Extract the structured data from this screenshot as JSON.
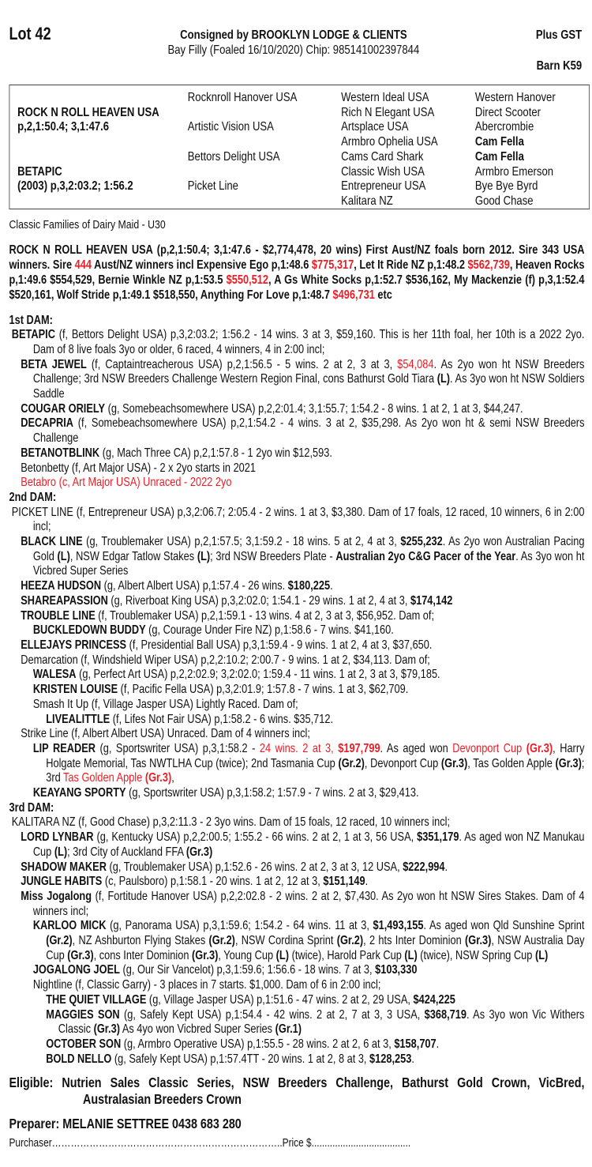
{
  "header": {
    "lot": "Lot 42",
    "consigned": "Consigned by BROOKLYN LODGE & CLIENTS",
    "description": "Bay Filly (Foaled 16/10/2020) Chip: 985141002397844",
    "gst": "Plus  GST",
    "barn": "Barn K59"
  },
  "pedigree": {
    "sire_name": "ROCK N ROLL HEAVEN USA",
    "sire_record": "p,2,1:50.4; 3,1:47.6",
    "dam_name": "BETAPIC",
    "dam_record": "(2003) p,3,2:03.2; 1:56.2",
    "col2": [
      "Rocknroll Hanover USA",
      "Artistic Vision USA",
      "Bettors Delight USA",
      "Picket Line"
    ],
    "col3": [
      "Western Ideal USA",
      "Rich N Elegant USA",
      "Artsplace USA",
      "Armbro Ophelia USA",
      "Cams Card Shark",
      "Classic Wish USA",
      "Entrepreneur USA",
      "Kalitara NZ"
    ],
    "col4": [
      {
        "t": "Western Hanover",
        "b": false
      },
      {
        "t": "Direct Scooter",
        "b": false
      },
      {
        "t": "Abercrombie",
        "b": false
      },
      {
        "t": "Cam Fella",
        "b": true
      },
      {
        "t": "Cam Fella",
        "b": true
      },
      {
        "t": "Armbro Emerson",
        "b": false
      },
      {
        "t": "Bye Bye Byrd",
        "b": false
      },
      {
        "t": "Good Chase",
        "b": false
      }
    ]
  },
  "families": "Classic Families of Dairy Maid - U30",
  "sire_paragraph": [
    [
      "ROCK N ROLL HEAVEN USA (p,2,1:50.4; 3,1:47.6 - $2,774,478, 20 wins) First Aust/NZ foals born 2012. Sire 343 USA winners. Sire "
    ],
    [
      "444",
      "r"
    ],
    [
      " Aust/NZ winners incl Expensive Ego p,1:48.6 "
    ],
    [
      "$775,317",
      "r"
    ],
    [
      ", Let It Ride NZ p,1:48.2 "
    ],
    [
      "$562,739",
      "r"
    ],
    [
      ", Heaven Rocks p,1:49.6 $554,529, Bernie Winkle NZ p,1:53.5 "
    ],
    [
      "$550,512",
      "r"
    ],
    [
      ", A Gs White Socks p,1:52.7 $536,162, My Mackenzie (f) p,3,1:52.4 $520,161, Wolf Stride p,1:49.1 $518,550, Anything For Love p,1:48.7 "
    ],
    [
      "$496,731",
      "r"
    ],
    [
      " etc"
    ]
  ],
  "colors": {
    "text": "#111111",
    "highlight": "#ee1c24"
  },
  "sections": [
    {
      "heading": "1st DAM:",
      "entries": [
        {
          "level": 1,
          "segs": [
            [
              "BETAPIC",
              "b"
            ],
            [
              " (f, Bettors Delight USA) p,3,2:03.2; 1:56.2 - 14 wins. 3 at 3, $59,160. This is her 11th foal, her 10th is a 2022 2yo. Dam of 8 live foals 3yo or older, 6 raced, 4 winners, 4 in 2:00 incl;"
            ]
          ]
        },
        {
          "level": 2,
          "segs": [
            [
              "BETA JEWEL",
              "b"
            ],
            [
              " (f, Captaintreacherous USA) p,2,1:56.5 - 5 wins. 2 at 2, 3 at 3, "
            ],
            [
              "$54,084",
              "r"
            ],
            [
              ". As 2yo won ht NSW Breeders Challenge; 3rd NSW Breeders Challenge Western Region Final, cons Bathurst Gold Tiara "
            ],
            [
              "(L)",
              "b"
            ],
            [
              ". As 3yo won ht NSW Soldiers Saddle"
            ]
          ]
        },
        {
          "level": 2,
          "segs": [
            [
              "COUGAR ORIELY",
              "b"
            ],
            [
              " (g, Somebeachsomewhere USA) p,2,2:01.4; 3,1:55.7; 1:54.2 - 8 wins. 1 at 2, 1 at 3, $44,247."
            ]
          ]
        },
        {
          "level": 2,
          "segs": [
            [
              "DECAPRIA",
              "b"
            ],
            [
              " (f, Somebeachsomewhere USA) p,2,1:54.2 - 4 wins. 3 at 2, $35,298. As 2yo won ht & semi NSW Breeders Challenge"
            ]
          ]
        },
        {
          "level": 2,
          "segs": [
            [
              "BETANOTBLINK",
              "b"
            ],
            [
              " (g, Mach Three CA) p,2,1:57.8 - 1 2yo win $12,593."
            ]
          ]
        },
        {
          "level": 2,
          "segs": [
            [
              "Betonbetty (f, Art Major USA) - 2 x 2yo starts in 2021"
            ]
          ]
        },
        {
          "level": 2,
          "segs": [
            [
              "Betabro (c, Art Major USA) Unraced - 2022 2yo",
              "r"
            ]
          ]
        }
      ]
    },
    {
      "heading": "2nd DAM:",
      "entries": [
        {
          "level": 1,
          "segs": [
            [
              "PICKET LINE (f, Entrepreneur USA) p,3,2:06.7; 2:05.4 - 2 wins. 1 at 3, $3,380. Dam of 17 foals, 12 raced, 10 winners, 6 in 2:00 incl;"
            ]
          ]
        },
        {
          "level": 2,
          "segs": [
            [
              "BLACK LINE",
              "b"
            ],
            [
              " (g, Troublemaker USA) p,2,1:57.5; 3,1:59.2 - 18 wins. 5 at 2, 4 at 3, "
            ],
            [
              "$255,232",
              "b"
            ],
            [
              ". As 2yo won Australian Pacing Gold "
            ],
            [
              "(L)",
              "b"
            ],
            [
              ", NSW Edgar Tatlow Stakes "
            ],
            [
              "(L)",
              "b"
            ],
            [
              "; 3rd NSW Breeders Plate - "
            ],
            [
              "Australian 2yo C&G Pacer of the Year",
              "b"
            ],
            [
              ". As 3yo won ht Vicbred Super Series"
            ]
          ]
        },
        {
          "level": 2,
          "segs": [
            [
              "HEEZA HUDSON",
              "b"
            ],
            [
              " (g, Albert Albert USA) p,1:57.4 - 26 wins. "
            ],
            [
              "$180,225",
              "b"
            ],
            [
              "."
            ]
          ]
        },
        {
          "level": 2,
          "segs": [
            [
              "SHAREAPASSION",
              "b"
            ],
            [
              " (g, Riverboat King USA) p,3,2:02.0; 1:54.1 - 29 wins. 1 at 2, 4 at 3, "
            ],
            [
              "$174,142",
              "b"
            ]
          ]
        },
        {
          "level": 2,
          "segs": [
            [
              "TROUBLE LINE",
              "b"
            ],
            [
              " (f, Troublemaker USA) p,2,1:59.1 - 13 wins. 4 at 2, 3 at 3, $56,952. Dam of;"
            ]
          ]
        },
        {
          "level": 3,
          "segs": [
            [
              "BUCKLEDOWN BUDDY",
              "b"
            ],
            [
              " (g, Courage Under Fire NZ) p,1:58.6 - 7 wins. $41,160."
            ]
          ]
        },
        {
          "level": 2,
          "segs": [
            [
              "ELLEJAYS PRINCESS",
              "b"
            ],
            [
              " (f, Presidential Ball USA) p,3,1:59.4 - 9 wins. 1 at 2, 4 at 3, $37,650."
            ]
          ]
        },
        {
          "level": 2,
          "segs": [
            [
              "Demarcation (f, Windshield Wiper USA) p,2,2:10.2; 2:00.7 - 9 wins. 1 at 2, $34,113. Dam of;"
            ]
          ]
        },
        {
          "level": 3,
          "segs": [
            [
              "WALESA",
              "b"
            ],
            [
              " (g, Perfect Art USA) p,2,2:02.9; 3,2:02.0; 1:59.4 - 11 wins. 1 at 2, 3 at 3, $79,185."
            ]
          ]
        },
        {
          "level": 3,
          "segs": [
            [
              "KRISTEN LOUISE",
              "b"
            ],
            [
              " (f, Pacific Fella USA) p,3,2:01.9; 1:57.8 - 7 wins. 1 at 3, $62,709."
            ]
          ]
        },
        {
          "level": 3,
          "segs": [
            [
              "Smash It Up (f, Village Jasper USA) Lightly Raced. Dam of;"
            ]
          ]
        },
        {
          "level": 4,
          "segs": [
            [
              "LIVEALITTLE",
              "b"
            ],
            [
              " (f, Lifes Not Fair USA) p,1:58.2 - 6 wins. $35,712."
            ]
          ]
        },
        {
          "level": 2,
          "segs": [
            [
              "Strike Line (f, Albert Albert USA) Unraced. Dam of 4 winners incl;"
            ]
          ]
        },
        {
          "level": 3,
          "segs": [
            [
              "LIP READER",
              "b"
            ],
            [
              " (g, Sportswriter USA) p,3,1:58.2 - "
            ],
            [
              "24 wins. 2 at 3, ",
              "r"
            ],
            [
              "$197,799",
              "br"
            ],
            [
              ". As aged won "
            ],
            [
              "Devonport Cup ",
              "r"
            ],
            [
              "(Gr.3)",
              "br"
            ],
            [
              ", Harry Holgate Memorial, Tas NWTLHA Cup (twice); 2nd Tasmania Cup "
            ],
            [
              "(Gr.2)",
              "b"
            ],
            [
              ", Devonport Cup "
            ],
            [
              "(Gr.3)",
              "b"
            ],
            [
              ", Tas Golden Apple "
            ],
            [
              "(Gr.3)",
              "b"
            ],
            [
              "; 3rd "
            ],
            [
              "Tas Golden Apple ",
              "r"
            ],
            [
              "(Gr.3)",
              "br"
            ],
            [
              ","
            ]
          ]
        },
        {
          "level": 3,
          "segs": [
            [
              "KEAYANG SPORTY",
              "b"
            ],
            [
              " (g, Sportswriter USA) p,3,1:58.2; 1:57.9 - 7 wins. 2 at 3, $29,413."
            ]
          ]
        }
      ]
    },
    {
      "heading": "3rd DAM:",
      "entries": [
        {
          "level": 1,
          "segs": [
            [
              "KALITARA NZ (f, Good Chase) p,3,2:11.3 - 2 3yo wins. Dam of 15 foals, 12 raced, 10 winners incl;"
            ]
          ]
        },
        {
          "level": 2,
          "segs": [
            [
              "LORD LYNBAR",
              "b"
            ],
            [
              " (g, Kentucky USA) p,2,2:00.5; 1:55.2 - 66 wins. 2 at 2, 1 at 3, 56 USA, "
            ],
            [
              "$351,179",
              "b"
            ],
            [
              ". As aged won NZ Manukau Cup "
            ],
            [
              "(L)",
              "b"
            ],
            [
              "; 3rd City of Auckland FFA "
            ],
            [
              "(Gr.3)",
              "b"
            ]
          ]
        },
        {
          "level": 2,
          "segs": [
            [
              "SHADOW MAKER",
              "b"
            ],
            [
              " (g, Troublemaker USA) p,1:52.6 - 26 wins. 2 at 2, 3 at 3, 12 USA, "
            ],
            [
              "$222,994",
              "b"
            ],
            [
              "."
            ]
          ]
        },
        {
          "level": 2,
          "segs": [
            [
              "JUNGLE HABITS",
              "b"
            ],
            [
              " (c, Paulsboro) p,1:58.1 - 20 wins. 1 at 2, 12 at 3, "
            ],
            [
              "$151,149",
              "b"
            ],
            [
              "."
            ]
          ]
        },
        {
          "level": 2,
          "segs": [
            [
              "Miss Jogalong",
              "b"
            ],
            [
              " (f, Fortitude Hanover USA) p,2,2:02.8 - 2 wins. 2 at 2, $7,430. As 2yo won ht NSW Sires Stakes. Dam of 4 winners incl;"
            ]
          ]
        },
        {
          "level": 3,
          "segs": [
            [
              "KARLOO MICK",
              "b"
            ],
            [
              " (g, Panorama USA) p,3,1:59.6; 1:54.2 - 64 wins. 11 at 3, "
            ],
            [
              "$1,493,155",
              "b"
            ],
            [
              ". As aged won Qld Sunshine Sprint "
            ],
            [
              "(Gr.2)",
              "b"
            ],
            [
              ", NZ Ashburton Flying Stakes "
            ],
            [
              "(Gr.2)",
              "b"
            ],
            [
              ", NSW Cordina Sprint "
            ],
            [
              "(Gr.2)",
              "b"
            ],
            [
              ", 2 hts Inter Dominion "
            ],
            [
              "(Gr.3)",
              "b"
            ],
            [
              ", NSW Australia Day Cup "
            ],
            [
              "(Gr.3)",
              "b"
            ],
            [
              ", cons Inter Dominion "
            ],
            [
              "(Gr.3)",
              "b"
            ],
            [
              ", Young Cup "
            ],
            [
              "(L)",
              "b"
            ],
            [
              " (twice), Harold Park Cup "
            ],
            [
              "(L)",
              "b"
            ],
            [
              " (twice), NSW Spring Cup "
            ],
            [
              "(L)",
              "b"
            ]
          ]
        },
        {
          "level": 3,
          "segs": [
            [
              "JOGALONG JOEL",
              "b"
            ],
            [
              " (g, Our Sir Vancelot) p,3,1:59.6; 1:56.6 - 18 wins. 7 at 3, "
            ],
            [
              "$103,330",
              "b"
            ]
          ]
        },
        {
          "level": 3,
          "segs": [
            [
              "Nightline (f, Classic Garry) - 3 places in 7 starts. $1,000. Dam of 6 in 2:00 incl;"
            ]
          ]
        },
        {
          "level": 4,
          "segs": [
            [
              "THE QUIET VILLAGE",
              "b"
            ],
            [
              " (g, Village Jasper USA) p,1:51.6 - 47 wins. 2 at 2, 29 USA, "
            ],
            [
              "$424,225",
              "b"
            ]
          ]
        },
        {
          "level": 4,
          "segs": [
            [
              "MAGGIES SON",
              "b"
            ],
            [
              " (g, Safely Kept USA) p,1:54.4 - 42 wins. 2 at 2, 7 at 3, 3 USA, "
            ],
            [
              "$368,719",
              "b"
            ],
            [
              ". As 3yo won Vic Withers Classic "
            ],
            [
              "(Gr.3)",
              "b"
            ],
            [
              " As 4yo won Vicbred Super Series "
            ],
            [
              "(Gr.1)",
              "b"
            ]
          ]
        },
        {
          "level": 4,
          "segs": [
            [
              "OCTOBER SON",
              "b"
            ],
            [
              " (g, Armbro Operative USA) p,1:55.5 - 28 wins. 2 at 2, 6 at 3, "
            ],
            [
              "$158,707",
              "b"
            ],
            [
              "."
            ]
          ]
        },
        {
          "level": 4,
          "segs": [
            [
              "BOLD NELLO",
              "b"
            ],
            [
              " (g, Safely Kept USA) p,1:57.4TT - 20 wins. 1 at 2, 8 at 3, "
            ],
            [
              "$128,253",
              "b"
            ],
            [
              "."
            ]
          ]
        }
      ]
    }
  ],
  "footer": {
    "eligible": "Eligible: Nutrien Sales Classic Series, NSW Breeders Challenge, Bathurst Gold Crown, VicBred, Australasian Breeders Crown",
    "preparer": "Preparer: MELANIE SETTREE 0438 683 280",
    "purchaser_label": "Purchaser………………………………………………………………..",
    "price_label": "Price $......................................"
  }
}
